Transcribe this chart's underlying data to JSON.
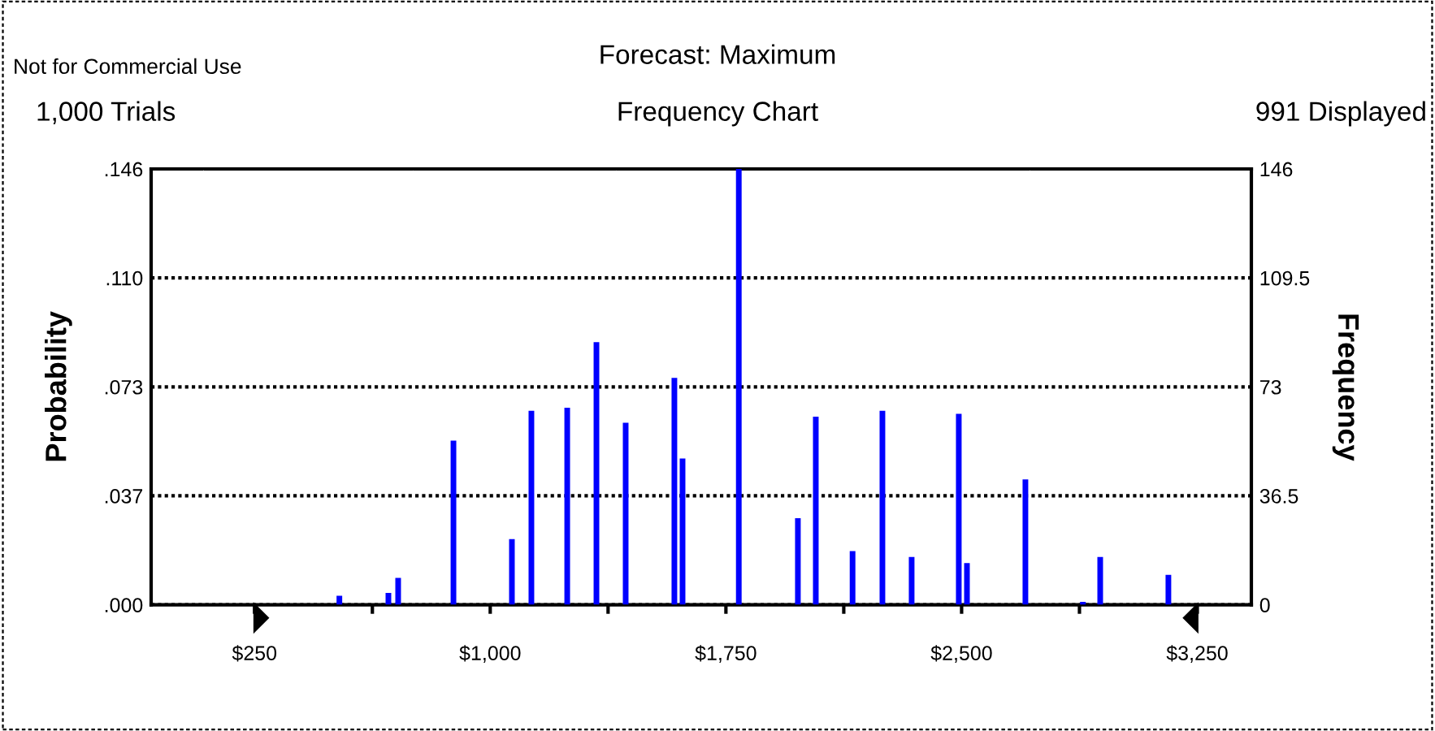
{
  "chart_data": {
    "type": "bar",
    "title": "Forecast: Maximum",
    "subtitle": "Frequency Chart",
    "ylabel": "Probability",
    "y2label": "Frequency",
    "annotations": [
      "Not for Commercial Use",
      "1,000 Trials",
      "991 Displayed"
    ],
    "x": [
      520,
      676,
      707,
      883,
      1069,
      1131,
      1245,
      1338,
      1431,
      1586,
      1612,
      1791,
      1979,
      2036,
      2153,
      2248,
      2341,
      2491,
      2517,
      2703,
      2886,
      2941,
      3158
    ],
    "series": [
      {
        "color": "#0000ff",
        "axis": "y2",
        "values": [
          3,
          4,
          9,
          55,
          22,
          65,
          66,
          88,
          61,
          76,
          49,
          146,
          29,
          63,
          18,
          65,
          16,
          64,
          14,
          42,
          1,
          16,
          10
        ]
      }
    ],
    "xlim": [
      -79,
      3422
    ],
    "xticks": [
      {
        "value": 250,
        "label": "$250"
      },
      {
        "value": 625,
        "label": null
      },
      {
        "value": 1000,
        "label": "$1,000"
      },
      {
        "value": 1375,
        "label": null
      },
      {
        "value": 1750,
        "label": "$1,750"
      },
      {
        "value": 2125,
        "label": null
      },
      {
        "value": 2500,
        "label": "$2,500"
      },
      {
        "value": 2875,
        "label": null
      },
      {
        "value": 3250,
        "label": "$3,250"
      }
    ],
    "ylim": [
      0,
      0.146
    ],
    "yticks": [
      {
        "value": 0,
        "label": ".000"
      },
      {
        "value": 0.0365,
        "label": ".037"
      },
      {
        "value": 0.073,
        "label": ".073"
      },
      {
        "value": 0.1095,
        "label": ".110"
      },
      {
        "value": 0.146,
        "label": ".146"
      }
    ],
    "y2lim": [
      0,
      146
    ],
    "y2ticks": [
      0,
      36.5,
      73,
      109.5,
      146
    ],
    "grid": "y",
    "legend": false
  }
}
